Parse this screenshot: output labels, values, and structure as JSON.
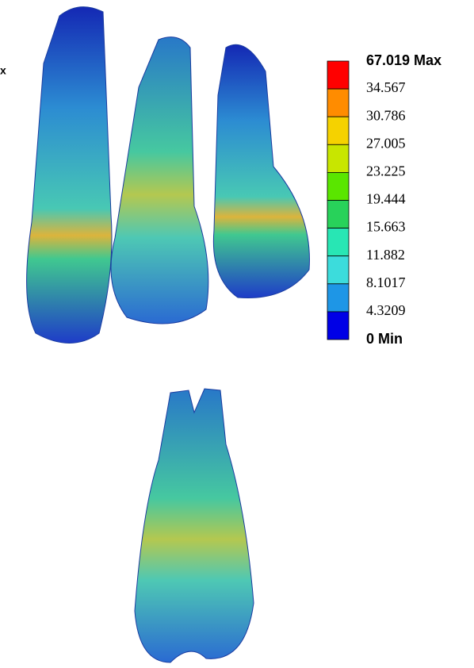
{
  "left_label": "x",
  "legend": {
    "labels": [
      "67.019 Max",
      "34.567",
      "30.786",
      "27.005",
      "23.225",
      "19.444",
      "15.663",
      "11.882",
      "8.1017",
      "4.3209",
      "0 Min"
    ],
    "colors": [
      "#ff0000",
      "#ff8c00",
      "#f5d200",
      "#c8e600",
      "#5ae600",
      "#28d25a",
      "#28e6b4",
      "#3cdcdc",
      "#1e96e6",
      "#0000e6"
    ]
  }
}
